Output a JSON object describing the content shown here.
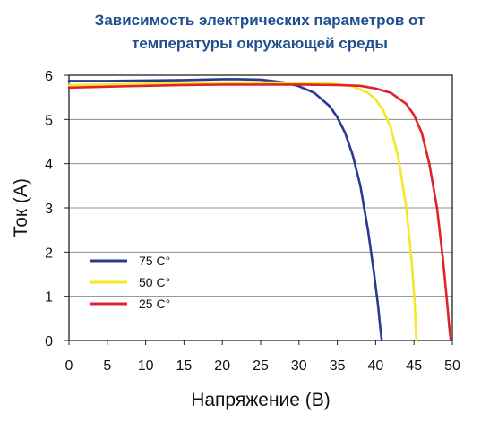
{
  "chart_data": {
    "type": "line",
    "title": "Зависимость электрических параметров от температуры окружающей среды",
    "xlabel": "Напряжение (В)",
    "ylabel": "Ток (А)",
    "xlim": [
      0,
      50
    ],
    "ylim": [
      0,
      6
    ],
    "xticks": [
      0,
      5,
      10,
      15,
      20,
      25,
      30,
      35,
      40,
      45,
      50
    ],
    "yticks": [
      0,
      1,
      2,
      3,
      4,
      5,
      6
    ],
    "grid": "horizontal",
    "legend_position": "lower-left",
    "series": [
      {
        "name": "75 C°",
        "color": "#2b3990",
        "x": [
          0,
          5,
          10,
          15,
          20,
          22,
          25,
          28,
          30,
          32,
          34,
          35,
          36,
          37,
          38,
          39,
          39.8,
          40.3,
          40.6,
          40.8
        ],
        "y": [
          5.87,
          5.87,
          5.88,
          5.89,
          5.91,
          5.91,
          5.9,
          5.84,
          5.75,
          5.6,
          5.3,
          5.05,
          4.7,
          4.2,
          3.5,
          2.5,
          1.5,
          0.8,
          0.3,
          0
        ]
      },
      {
        "name": "50 C°",
        "color": "#f4e829",
        "x": [
          0,
          5,
          10,
          15,
          20,
          25,
          30,
          33,
          35,
          37,
          39,
          40,
          41,
          42,
          43,
          44,
          44.7,
          45.1,
          45.3
        ],
        "y": [
          5.78,
          5.79,
          5.81,
          5.83,
          5.84,
          5.84,
          5.83,
          5.82,
          5.8,
          5.75,
          5.6,
          5.45,
          5.2,
          4.8,
          4.1,
          3.0,
          1.8,
          0.8,
          0
        ]
      },
      {
        "name": "25 C°",
        "color": "#e0242b",
        "x": [
          0,
          5,
          10,
          15,
          20,
          25,
          30,
          35,
          38,
          40,
          42,
          44,
          45,
          46,
          47,
          48,
          48.8,
          49.3,
          49.6,
          49.8
        ],
        "y": [
          5.72,
          5.74,
          5.76,
          5.78,
          5.79,
          5.79,
          5.79,
          5.78,
          5.76,
          5.7,
          5.6,
          5.35,
          5.1,
          4.7,
          4.0,
          3.0,
          1.8,
          0.9,
          0.3,
          0
        ]
      }
    ]
  }
}
